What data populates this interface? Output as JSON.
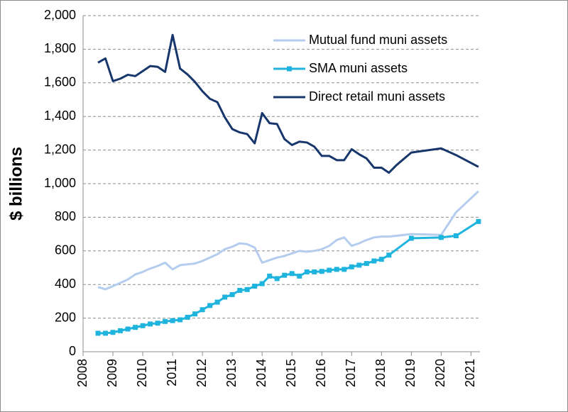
{
  "chart_data": {
    "type": "line",
    "ylabel": "$ billions",
    "xlim": [
      2008,
      2021.3
    ],
    "xticks": [
      2008,
      2009,
      2010,
      2011,
      2012,
      2013,
      2014,
      2015,
      2016,
      2017,
      2018,
      2019,
      2020,
      2021
    ],
    "ylim": [
      0,
      2000
    ],
    "yticks": [
      0,
      200,
      400,
      600,
      800,
      {
        "value": 1000,
        "label": "1,000"
      },
      {
        "value": 1200,
        "label": "1,200"
      },
      {
        "value": 1400,
        "label": "1,400"
      },
      {
        "value": 1600,
        "label": "1,600"
      },
      {
        "value": 1800,
        "label": "1,800"
      },
      {
        "value": 2000,
        "label": "2,000"
      }
    ],
    "grid": true,
    "legend": "upper right",
    "series": [
      {
        "name": "Mutual fund muni assets",
        "color": "#b4ccee",
        "marker": "none",
        "x": [
          2008.5,
          2008.75,
          2009,
          2009.25,
          2009.5,
          2009.75,
          2010,
          2010.25,
          2010.5,
          2010.75,
          2011,
          2011.25,
          2011.5,
          2011.75,
          2012,
          2012.25,
          2012.5,
          2012.75,
          2013,
          2013.25,
          2013.5,
          2013.75,
          2014,
          2014.25,
          2014.5,
          2014.75,
          2015,
          2015.25,
          2015.5,
          2015.75,
          2016,
          2016.25,
          2016.5,
          2016.75,
          2017,
          2017.25,
          2017.5,
          2017.75,
          2018,
          2018.25,
          2019,
          2020,
          2020.5,
          2021.25
        ],
        "values": [
          385,
          372,
          390,
          410,
          430,
          460,
          475,
          495,
          510,
          530,
          490,
          515,
          520,
          525,
          540,
          560,
          580,
          610,
          625,
          645,
          640,
          620,
          530,
          545,
          560,
          570,
          585,
          600,
          595,
          600,
          610,
          630,
          665,
          680,
          630,
          645,
          665,
          680,
          685,
          685,
          700,
          695,
          830,
          955
        ]
      },
      {
        "name": "SMA muni assets",
        "color": "#1fb4de",
        "marker": "square",
        "x": [
          2008.5,
          2008.75,
          2009,
          2009.25,
          2009.5,
          2009.75,
          2010,
          2010.25,
          2010.5,
          2010.75,
          2011,
          2011.25,
          2011.5,
          2011.75,
          2012,
          2012.25,
          2012.5,
          2012.75,
          2013,
          2013.25,
          2013.5,
          2013.75,
          2014,
          2014.25,
          2014.5,
          2014.75,
          2015,
          2015.25,
          2015.5,
          2015.75,
          2016,
          2016.25,
          2016.5,
          2016.75,
          2017,
          2017.25,
          2017.5,
          2017.75,
          2018,
          2018.25,
          2019,
          2020,
          2020.5,
          2021.25
        ],
        "values": [
          110,
          110,
          115,
          125,
          135,
          145,
          155,
          165,
          170,
          180,
          185,
          190,
          205,
          225,
          250,
          275,
          295,
          325,
          340,
          365,
          370,
          390,
          405,
          450,
          435,
          455,
          465,
          450,
          475,
          475,
          478,
          485,
          490,
          490,
          505,
          515,
          525,
          540,
          550,
          575,
          675,
          680,
          690,
          775
        ]
      },
      {
        "name": "Direct retail muni assets",
        "color": "#17366b",
        "marker": "none",
        "x": [
          2008.5,
          2008.75,
          2009,
          2009.25,
          2009.5,
          2009.75,
          2010,
          2010.25,
          2010.5,
          2010.75,
          2011,
          2011.25,
          2011.5,
          2011.75,
          2012,
          2012.25,
          2012.5,
          2012.75,
          2013,
          2013.25,
          2013.5,
          2013.75,
          2014,
          2014.25,
          2014.5,
          2014.75,
          2015,
          2015.25,
          2015.5,
          2015.75,
          2016,
          2016.25,
          2016.5,
          2016.75,
          2017,
          2017.25,
          2017.5,
          2017.75,
          2018,
          2018.25,
          2018.5,
          2019,
          2020,
          2020.5,
          2021.25
        ],
        "values": [
          1720,
          1745,
          1610,
          1625,
          1648,
          1640,
          1670,
          1700,
          1695,
          1665,
          1885,
          1685,
          1650,
          1605,
          1550,
          1505,
          1485,
          1395,
          1325,
          1305,
          1295,
          1240,
          1420,
          1360,
          1355,
          1265,
          1230,
          1250,
          1245,
          1220,
          1165,
          1165,
          1140,
          1140,
          1205,
          1175,
          1150,
          1095,
          1095,
          1065,
          1110,
          1185,
          1210,
          1170,
          1100
        ]
      }
    ]
  }
}
